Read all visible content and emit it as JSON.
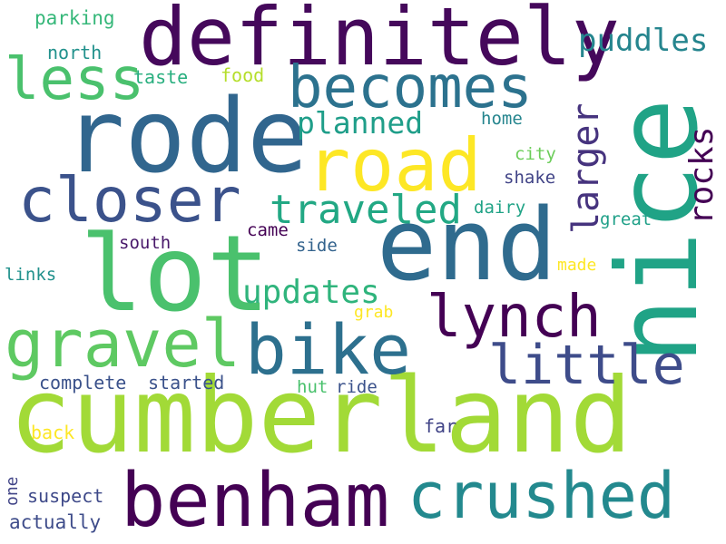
{
  "words": [
    {
      "text": "cumberland",
      "color": "#a2da37"
    },
    {
      "text": "definitely",
      "color": "#45085b"
    },
    {
      "text": "rode",
      "color": "#31668e"
    },
    {
      "text": "nice",
      "color": "#20a386"
    },
    {
      "text": "end",
      "color": "#2f6b8e"
    },
    {
      "text": "lot",
      "color": "#4ac16d"
    },
    {
      "text": "road",
      "color": "#fde725"
    },
    {
      "text": "benham",
      "color": "#440154"
    },
    {
      "text": "crushed",
      "color": "#23898e"
    },
    {
      "text": "becomes",
      "color": "#2c728e"
    },
    {
      "text": "closer",
      "color": "#3b528b"
    },
    {
      "text": "bike",
      "color": "#2d708e"
    },
    {
      "text": "gravel",
      "color": "#5ec962"
    },
    {
      "text": "lynch",
      "color": "#440154"
    },
    {
      "text": "little",
      "color": "#3e4c8a"
    },
    {
      "text": "less",
      "color": "#4ac16d"
    },
    {
      "text": "traveled",
      "color": "#22a884"
    },
    {
      "text": "updates",
      "color": "#2fb47c"
    },
    {
      "text": "larger",
      "color": "#46337e"
    },
    {
      "text": "rocks",
      "color": "#440154"
    },
    {
      "text": "planned",
      "color": "#1f9e89"
    },
    {
      "text": "puddles",
      "color": "#25858e"
    },
    {
      "text": "parking",
      "color": "#35b779"
    },
    {
      "text": "north",
      "color": "#21918c"
    },
    {
      "text": "taste",
      "color": "#29af7f"
    },
    {
      "text": "food",
      "color": "#b5de2b"
    },
    {
      "text": "home",
      "color": "#25858e"
    },
    {
      "text": "city",
      "color": "#6ccd5a"
    },
    {
      "text": "shake",
      "color": "#414487"
    },
    {
      "text": "dairy",
      "color": "#20a386"
    },
    {
      "text": "great",
      "color": "#1fa088"
    },
    {
      "text": "came",
      "color": "#440154"
    },
    {
      "text": "south",
      "color": "#48186a"
    },
    {
      "text": "side",
      "color": "#33638d"
    },
    {
      "text": "made",
      "color": "#fde725"
    },
    {
      "text": "links",
      "color": "#21918c"
    },
    {
      "text": "grab",
      "color": "#fde725"
    },
    {
      "text": "complete",
      "color": "#3b528b"
    },
    {
      "text": "started",
      "color": "#3b528b"
    },
    {
      "text": "hut",
      "color": "#4ac16d"
    },
    {
      "text": "ride",
      "color": "#3b528b"
    },
    {
      "text": "back",
      "color": "#fde725"
    },
    {
      "text": "far",
      "color": "#414487"
    },
    {
      "text": "one",
      "color": "#414487"
    },
    {
      "text": "suspect",
      "color": "#3e4989"
    },
    {
      "text": "actually",
      "color": "#3e4c8a"
    }
  ]
}
